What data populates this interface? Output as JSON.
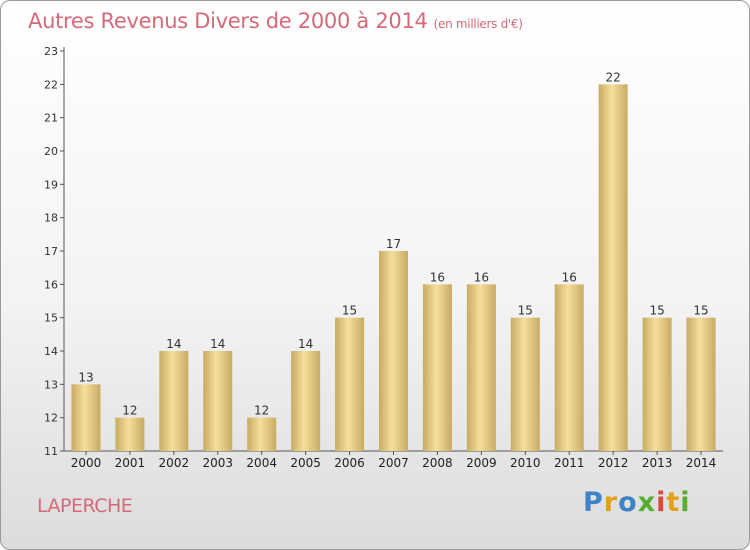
{
  "chart_data": {
    "type": "bar",
    "title": "Autres Revenus Divers de 2000 à 2014",
    "subtitle": "(en milliers d'€)",
    "categories": [
      "2000",
      "2001",
      "2002",
      "2003",
      "2004",
      "2005",
      "2006",
      "2007",
      "2008",
      "2009",
      "2010",
      "2011",
      "2012",
      "2013",
      "2014"
    ],
    "values": [
      13,
      12,
      14,
      14,
      12,
      14,
      15,
      17,
      16,
      16,
      15,
      16,
      22,
      15,
      15
    ],
    "ylim": [
      11,
      23
    ],
    "yticks": [
      11,
      12,
      13,
      14,
      15,
      16,
      17,
      18,
      19,
      20,
      21,
      22,
      23
    ],
    "xlabel": "",
    "ylabel": "",
    "grid": false,
    "colors": {
      "bar_light": "#f6df9c",
      "bar_dark": "#c8aa63",
      "title": "#d46a79"
    }
  },
  "location": "LAPERCHE",
  "logo": {
    "letters": [
      "P",
      "r",
      "o",
      "x",
      "i",
      "t",
      "i"
    ]
  }
}
